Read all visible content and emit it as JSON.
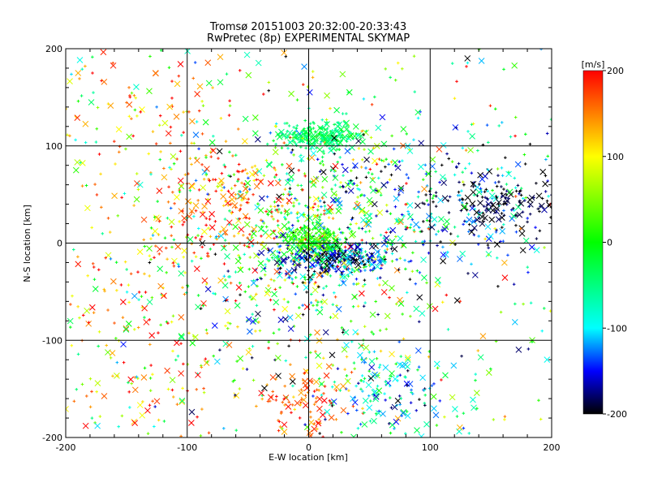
{
  "chart_data": {
    "type": "scatter",
    "title": "Tromsø 20151003 20:32:00-20:33:43",
    "subtitle": "RwPretec (8p) EXPERIMENTAL SKYMAP",
    "xlabel": "E-W location [km]",
    "ylabel": "N-S location [km]",
    "xlim": [
      -200,
      200
    ],
    "ylim": [
      -200,
      200
    ],
    "xticks": [
      "-200",
      "-100",
      "0",
      "100",
      "200"
    ],
    "yticks": [
      "-200",
      "-100",
      "0",
      "100",
      "200"
    ],
    "grid": true,
    "colorbar": {
      "label": "[m/s]",
      "range": [
        -200,
        200
      ],
      "ticks": [
        "200",
        "100",
        "0",
        "-100",
        "-200"
      ],
      "stops": [
        "#ff0000",
        "#ffff00",
        "#00ff00",
        "#00ffff",
        "#0000ff",
        "#000000"
      ]
    },
    "markers": [
      "plus",
      "cross"
    ],
    "clusters": [
      {
        "x": 0,
        "y": 0,
        "sx": 55,
        "sy": 65,
        "n": 700,
        "v": 0,
        "sv": 110
      },
      {
        "x": 20,
        "y": -15,
        "sx": 22,
        "sy": 10,
        "n": 320,
        "v": -150,
        "sv": 60
      },
      {
        "x": 5,
        "y": 5,
        "sx": 12,
        "sy": 8,
        "n": 160,
        "v": 10,
        "sv": 30
      },
      {
        "x": 10,
        "y": 110,
        "sx": 15,
        "sy": 7,
        "n": 220,
        "v": -40,
        "sv": 20
      },
      {
        "x": -70,
        "y": 40,
        "sx": 30,
        "sy": 30,
        "n": 170,
        "v": 160,
        "sv": 40
      },
      {
        "x": 110,
        "y": 40,
        "sx": 55,
        "sy": 35,
        "n": 300,
        "v": -130,
        "sv": 60
      },
      {
        "x": 160,
        "y": 40,
        "sx": 30,
        "sy": 15,
        "n": 140,
        "v": -195,
        "sv": 15
      },
      {
        "x": 65,
        "y": -150,
        "sx": 25,
        "sy": 20,
        "n": 130,
        "v": -100,
        "sv": 50
      },
      {
        "x": 0,
        "y": -170,
        "sx": 20,
        "sy": 20,
        "n": 90,
        "v": 170,
        "sv": 30
      },
      {
        "x": -150,
        "y": -50,
        "sx": 35,
        "sy": 30,
        "n": 90,
        "v": 130,
        "sv": 80
      },
      {
        "x": -150,
        "y": 130,
        "sx": 35,
        "sy": 40,
        "n": 80,
        "v": 150,
        "sv": 60
      },
      {
        "x": -130,
        "y": -150,
        "sx": 35,
        "sy": 25,
        "n": 60,
        "v": 140,
        "sv": 70
      },
      {
        "x": 0,
        "y": 0,
        "sx": 200,
        "sy": 200,
        "n": 420,
        "v": 0,
        "sv": 130,
        "uniform": true
      }
    ]
  }
}
